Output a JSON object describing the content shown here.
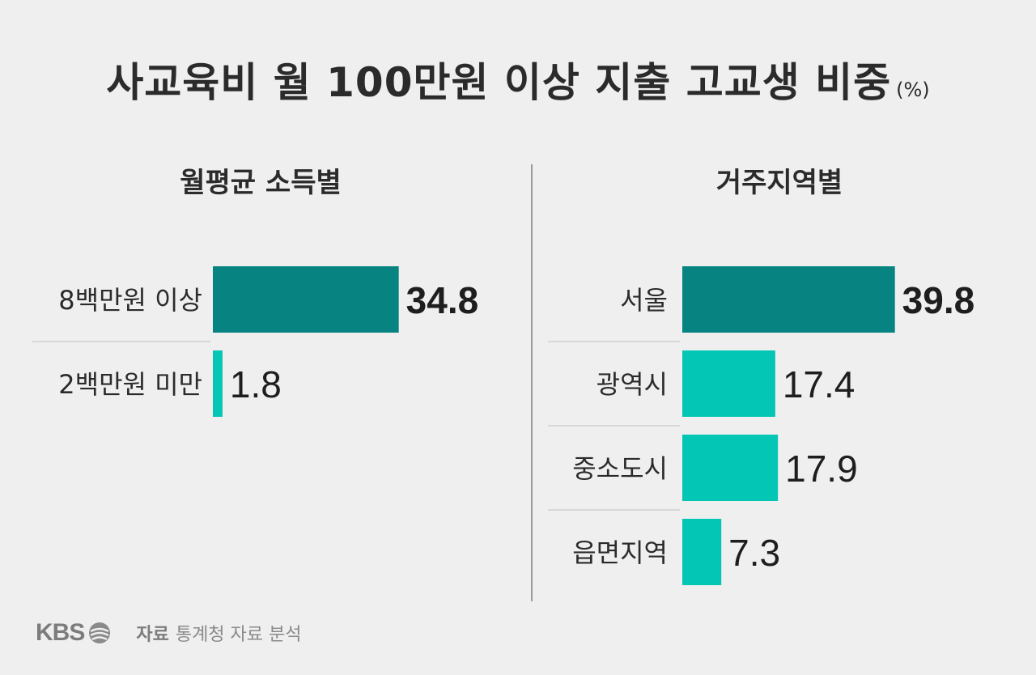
{
  "header": {
    "title": "사교육비 월 100만원 이상 지출 고교생 비중",
    "unit": "(%)"
  },
  "footer": {
    "logo_text": "KBS",
    "source_label": "자료",
    "source_text": "통계청 자료 분석"
  },
  "colors": {
    "highlight": "#078481",
    "normal": "#03c6b4",
    "separator": "#cfcfcf"
  },
  "chart_data": [
    {
      "type": "bar",
      "orientation": "horizontal",
      "title": "월평균 소득별",
      "categories": [
        "8백만원 이상",
        "2백만원 미만"
      ],
      "values": [
        34.8,
        1.8
      ],
      "value_labels": [
        "34.8",
        "1.8"
      ],
      "highlight_index": 0
    },
    {
      "type": "bar",
      "orientation": "horizontal",
      "title": "거주지역별",
      "categories": [
        "서울",
        "광역시",
        "중소도시",
        "읍면지역"
      ],
      "values": [
        39.8,
        17.4,
        17.9,
        7.3
      ],
      "value_labels": [
        "39.8",
        "17.4",
        "17.9",
        "7.3"
      ],
      "highlight_index": 0
    }
  ]
}
